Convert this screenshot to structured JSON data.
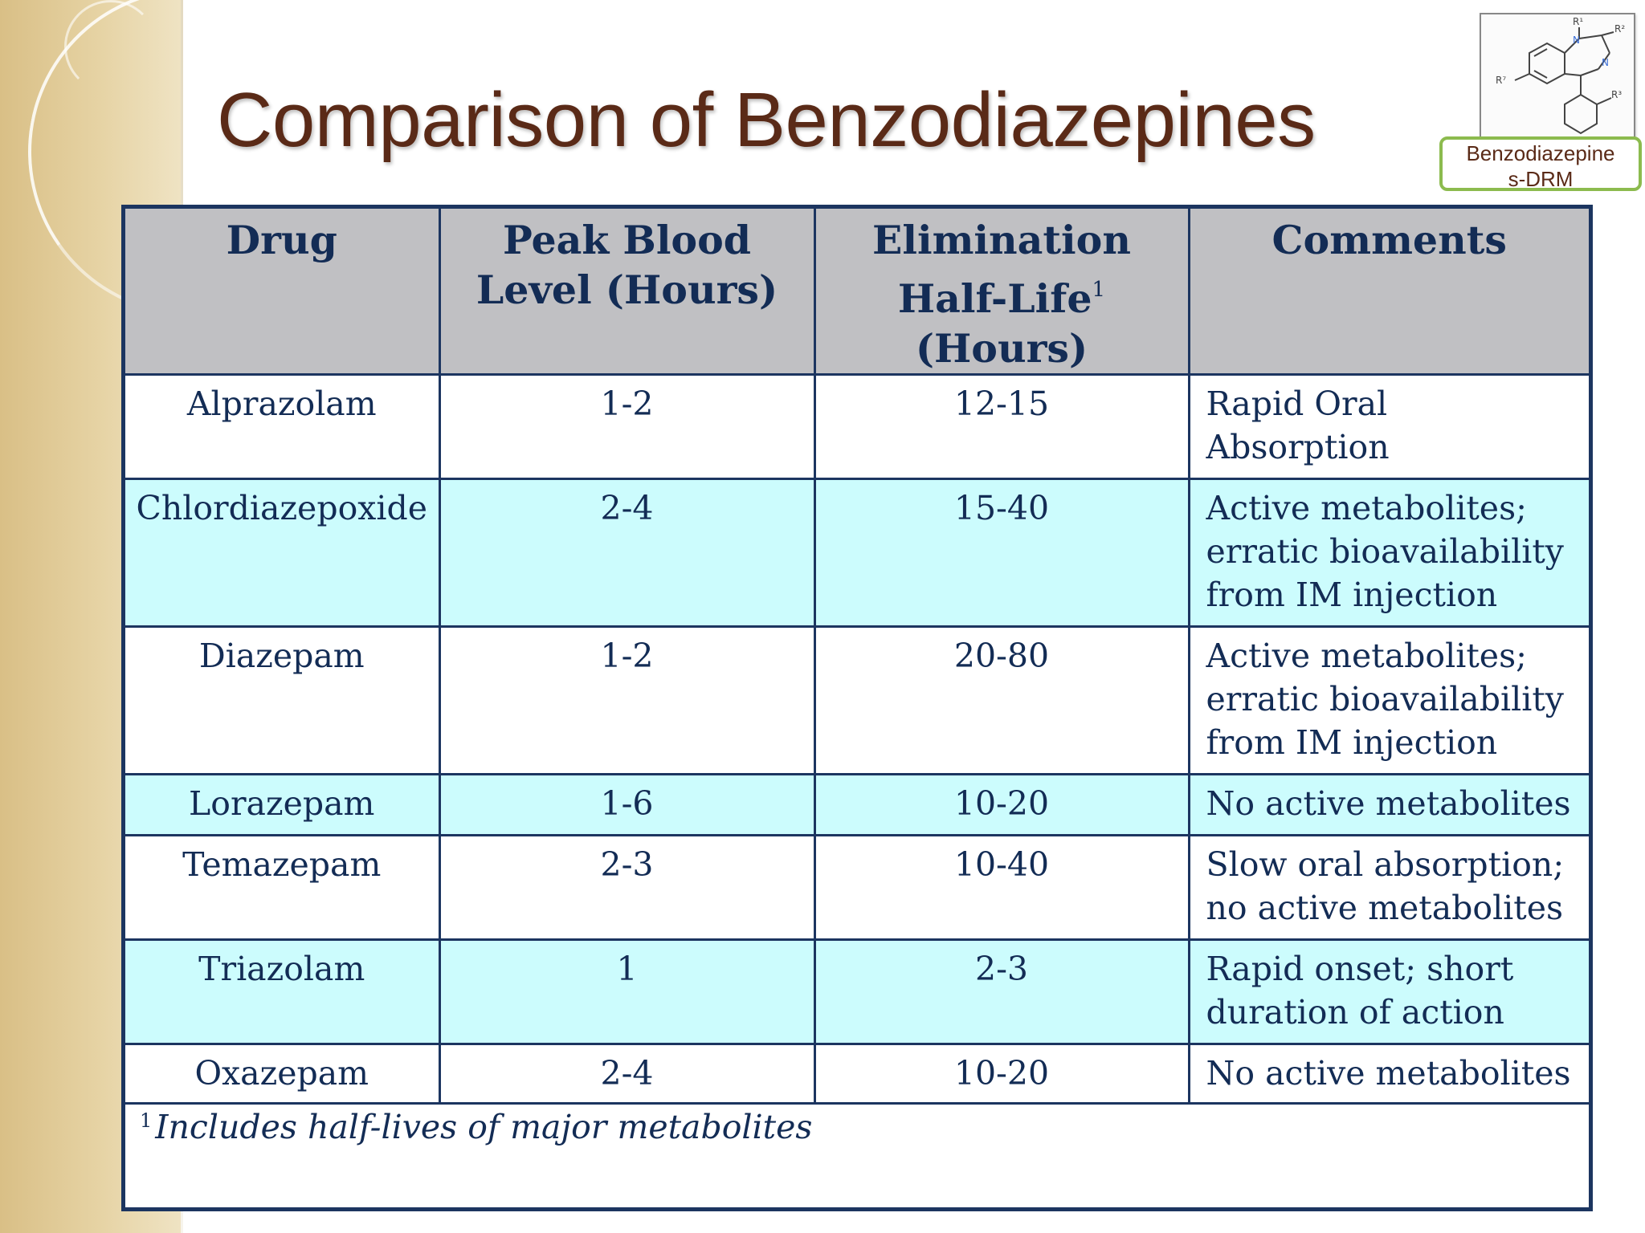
{
  "slide": {
    "title": "Comparison of Benzodiazepines",
    "structure_label": "Benzodiazepines-DRM",
    "structure_label_lines": [
      "Benzodiazepine",
      "s-DRM"
    ],
    "structure_atoms": [
      "R¹",
      "R²",
      "N",
      "N",
      "R⁷",
      "R³"
    ]
  },
  "table": {
    "headers": [
      {
        "lines": [
          "Drug"
        ]
      },
      {
        "lines": [
          "Peak Blood",
          "Level (Hours)"
        ]
      },
      {
        "lines": [
          "Elimination",
          "Half-Life",
          "(Hours)"
        ],
        "superscript": "1"
      },
      {
        "lines": [
          "Comments"
        ]
      }
    ],
    "rows": [
      {
        "drug": "Alprazolam",
        "peak": "1-2",
        "half_life": "12-15",
        "comment_lines": [
          "Rapid Oral",
          "Absorption"
        ]
      },
      {
        "drug": "Chlordiazepoxide",
        "peak": "2-4",
        "half_life": "15-40",
        "comment_lines": [
          "Active metabolites;",
          "erratic bioavailability",
          "from IM injection"
        ]
      },
      {
        "drug": "Diazepam",
        "peak": "1-2",
        "half_life": "20-80",
        "comment_lines": [
          "Active metabolites;",
          "erratic bioavailability",
          "from IM injection"
        ]
      },
      {
        "drug": "Lorazepam",
        "peak": "1-6",
        "half_life": "10-20",
        "comment_lines": [
          "No active metabolites"
        ]
      },
      {
        "drug": "Temazepam",
        "peak": "2-3",
        "half_life": "10-40",
        "comment_lines": [
          "Slow oral absorption;",
          "no active metabolites"
        ]
      },
      {
        "drug": "Triazolam",
        "peak": "1",
        "half_life": "2-3",
        "comment_lines": [
          "Rapid onset; short",
          "duration of action"
        ]
      },
      {
        "drug": "Oxazepam",
        "peak": "2-4",
        "half_life": "10-20",
        "comment_lines": [
          "No active metabolites"
        ]
      }
    ],
    "footnote": {
      "marker": "1",
      "text": "Includes half-lives of major metabolites"
    }
  },
  "colors": {
    "title": "#5a2a17",
    "table_border": "#1c3560",
    "header_bg": "#c0c0c3",
    "alt_row_bg": "#ccfcfd",
    "text": "#132c55",
    "label_border": "#8cbb4e",
    "side_band": "#e0c992"
  }
}
